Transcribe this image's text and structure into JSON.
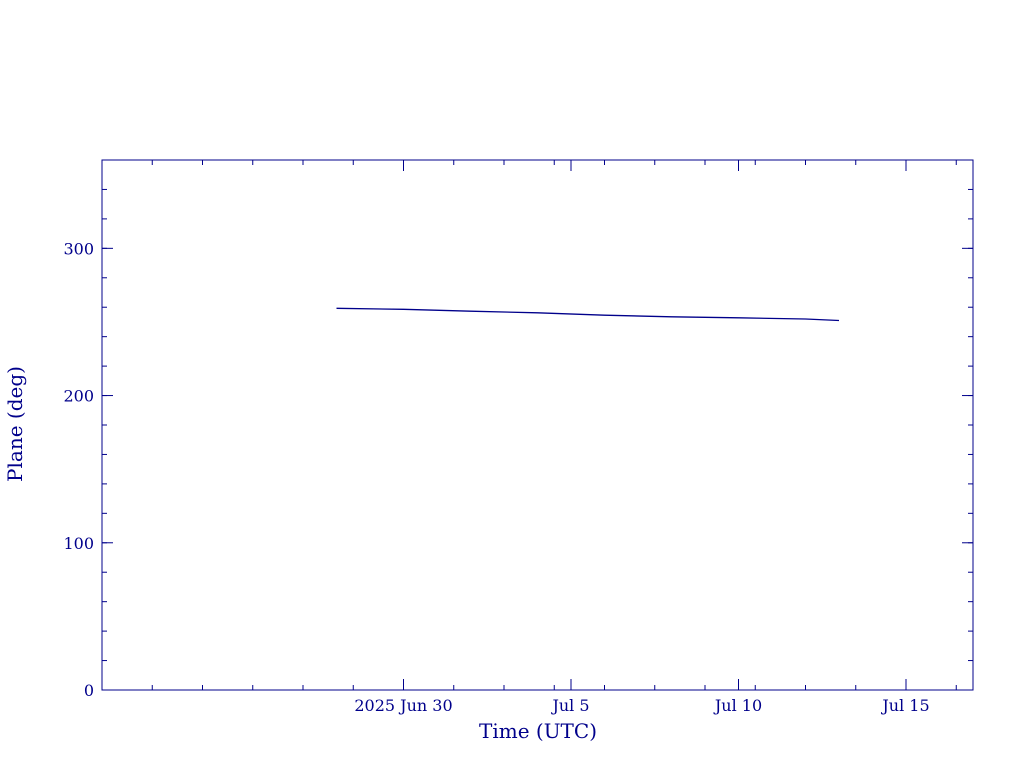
{
  "colors": {
    "axis": "#00008b",
    "series": "#00008b",
    "background": "#ffffff"
  },
  "chart_data": {
    "type": "line",
    "title": "",
    "xlabel": "Time (UTC)",
    "ylabel": "Plane (deg)",
    "x_type": "date",
    "xlim": [
      "2025-06-21",
      "2025-07-17"
    ],
    "ylim": [
      0,
      360
    ],
    "grid": false,
    "y_ticks": [
      0,
      100,
      200,
      300
    ],
    "x_ticks": [
      {
        "date": "2025-06-30",
        "label": "2025 Jun 30"
      },
      {
        "date": "2025-07-05",
        "label": "Jul  5"
      },
      {
        "date": "2025-07-10",
        "label": "Jul 10"
      },
      {
        "date": "2025-07-15",
        "label": "Jul 15"
      }
    ],
    "series": [
      {
        "x": [
          "2025-06-28",
          "2025-06-30",
          "2025-07-02",
          "2025-07-04",
          "2025-07-06",
          "2025-07-08",
          "2025-07-10",
          "2025-07-12",
          "2025-07-13"
        ],
        "y": [
          259.3,
          258.6,
          257.3,
          256.2,
          254.6,
          253.5,
          252.8,
          252.0,
          251.0
        ]
      }
    ]
  }
}
